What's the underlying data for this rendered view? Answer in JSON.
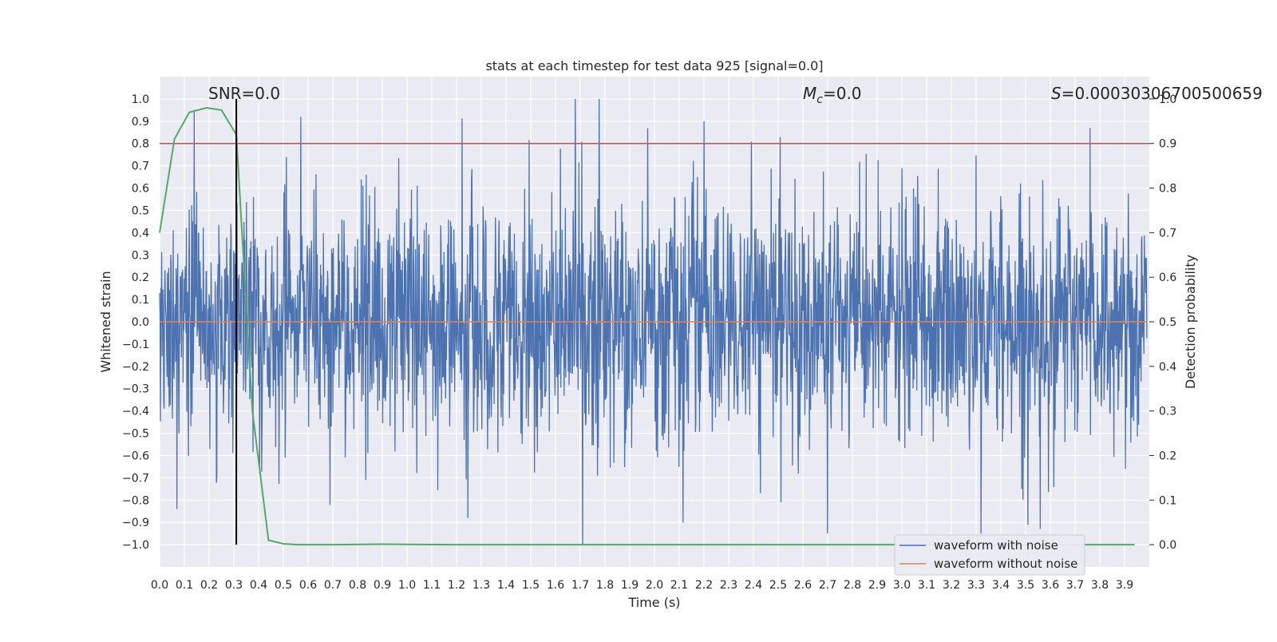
{
  "chart_data": {
    "type": "line",
    "title": "stats at each timestep for test data 925 [signal=0.0]",
    "xlabel": "Time (s)",
    "ylabel": "Whitened strain",
    "ylabel_right": "Detection probability",
    "xlim": [
      0.0,
      4.0
    ],
    "ylim": [
      -1.1,
      1.1
    ],
    "ylim_right": [
      -0.05,
      1.05
    ],
    "grid": true,
    "legend_position": "lower right",
    "x_ticks": [
      "0.0",
      "0.1",
      "0.2",
      "0.3",
      "0.4",
      "0.5",
      "0.6",
      "0.7",
      "0.8",
      "0.9",
      "1.0",
      "1.1",
      "1.2",
      "1.3",
      "1.4",
      "1.5",
      "1.6",
      "1.7",
      "1.8",
      "1.9",
      "2.0",
      "2.1",
      "2.2",
      "2.3",
      "2.4",
      "2.5",
      "2.6",
      "2.7",
      "2.8",
      "2.9",
      "3.0",
      "3.1",
      "3.2",
      "3.3",
      "3.4",
      "3.5",
      "3.6",
      "3.7",
      "3.8",
      "3.9"
    ],
    "y_ticks": [
      "1.0",
      "0.9",
      "0.8",
      "0.7",
      "0.6",
      "0.5",
      "0.4",
      "0.3",
      "0.2",
      "0.1",
      "0.0",
      "−0.1",
      "−0.2",
      "−0.3",
      "−0.4",
      "−0.5",
      "−0.6",
      "−0.7",
      "−0.8",
      "−0.9",
      "−1.0"
    ],
    "y_ticks_right": [
      "1.0",
      "0.9",
      "0.8",
      "0.7",
      "0.6",
      "0.5",
      "0.4",
      "0.3",
      "0.2",
      "0.1",
      "0.0"
    ],
    "annotations": {
      "snr": "SNR=0.0",
      "mc_symbol": "M",
      "mc_sub": "c",
      "mc_value": "=0.0",
      "s_symbol": "S",
      "s_value": "=0.00030306700500659"
    },
    "series": [
      {
        "name": "waveform with noise",
        "color": "#4c72b0",
        "kind": "noise",
        "amplitude_range": [
          -1.0,
          1.0
        ],
        "notable_peaks": [
          {
            "x": 0.14,
            "y": 0.95
          },
          {
            "x": 0.57,
            "y": 0.92
          },
          {
            "x": 1.68,
            "y": 1.0
          },
          {
            "x": 2.2,
            "y": 0.9
          },
          {
            "x": 3.76,
            "y": 0.87
          },
          {
            "x": 1.71,
            "y": -1.0
          },
          {
            "x": 3.32,
            "y": -0.95
          },
          {
            "x": 3.56,
            "y": -0.93
          },
          {
            "x": 2.7,
            "y": -0.95
          },
          {
            "x": 0.07,
            "y": -0.84
          }
        ]
      },
      {
        "name": "waveform without noise",
        "color": "#dd8452",
        "x": [
          0.0,
          3.99
        ],
        "y": [
          0.0,
          0.0
        ]
      },
      {
        "color": "#55a868",
        "axis": "right",
        "x": [
          0.0,
          0.06,
          0.12,
          0.19,
          0.25,
          0.31,
          0.375,
          0.44,
          0.5,
          0.56,
          0.7,
          0.9,
          1.2,
          2.0,
          3.0,
          3.94
        ],
        "y": [
          0.7,
          0.91,
          0.97,
          0.98,
          0.975,
          0.92,
          0.3,
          0.01,
          0.002,
          0.0,
          0.0,
          0.001,
          0.0,
          0.0,
          0.0,
          0.0
        ]
      }
    ],
    "threshold": {
      "value": 0.9,
      "axis": "right",
      "color": "#c44e52"
    },
    "marker": {
      "x": 0.31,
      "color": "#000000",
      "ymin": -1.0,
      "ymax": 1.0
    }
  }
}
